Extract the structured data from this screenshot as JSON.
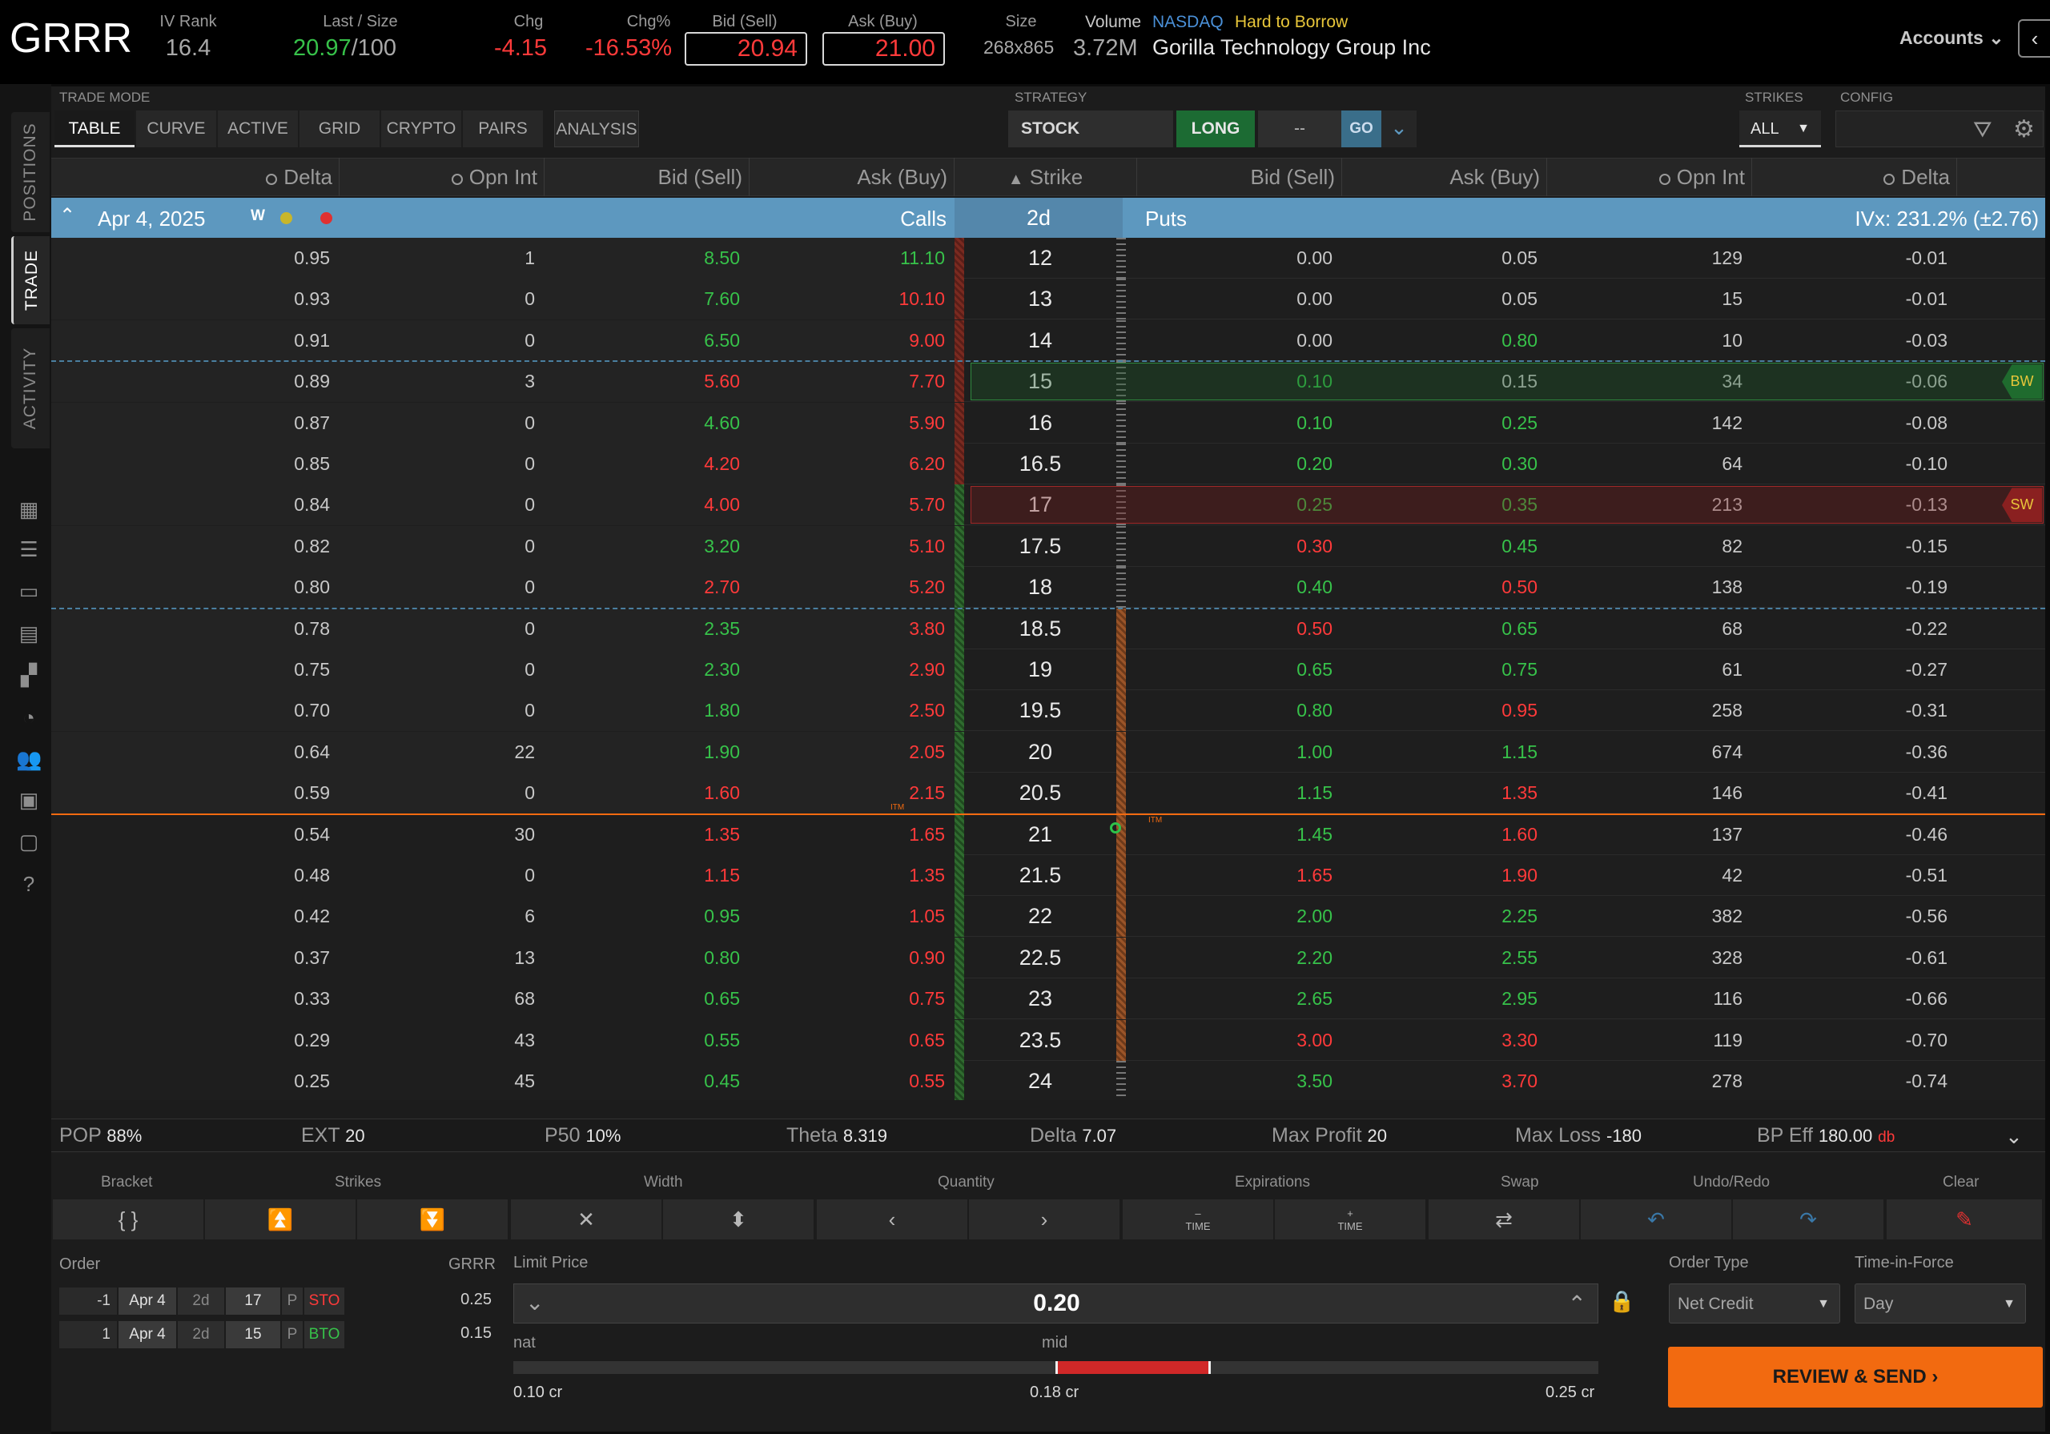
{
  "header": {
    "symbol": "GRRR",
    "iv_rank_label": "IV Rank",
    "iv_rank": "16.4",
    "last_size_label": "Last / Size",
    "last": "20.97",
    "size": "/100",
    "chg_label": "Chg",
    "chg": "-4.15",
    "chgpct_label": "Chg%",
    "chgpct": "-16.53%",
    "bid_label": "Bid (Sell)",
    "bid": "20.94",
    "ask_label": "Ask (Buy)",
    "ask": "21.00",
    "size2_label": "Size",
    "size2": "268x865",
    "volume_label": "Volume",
    "volume": "3.72M",
    "exchange": "NASDAQ",
    "htb": "Hard to Borrow",
    "company": "Gorilla Technology Group Inc",
    "accounts": "Accounts"
  },
  "rail": {
    "positions": "POSITIONS",
    "trade": "TRADE",
    "activity": "ACTIVITY"
  },
  "toolbar": {
    "trade_mode_label": "TRADE MODE",
    "modes": [
      "TABLE",
      "CURVE",
      "ACTIVE",
      "GRID",
      "CRYPTO",
      "PAIRS",
      "ANALYSIS"
    ],
    "strategy_label": "STRATEGY",
    "strategy": "STOCK",
    "direction": "LONG",
    "dash": "--",
    "go": "GO",
    "strikes_label": "STRIKES",
    "strikes": "ALL",
    "config_label": "CONFIG"
  },
  "columns": {
    "delta": "Delta",
    "opnint": "Opn Int",
    "bid": "Bid (Sell)",
    "ask": "Ask (Buy)",
    "strike": "Strike"
  },
  "expiry": {
    "date": "Apr 4, 2025",
    "w": "W",
    "calls": "Calls",
    "dte": "2d",
    "puts": "Puts",
    "ivx": "IVx: 231.2% (±2.76)"
  },
  "rows": [
    {
      "cd": "0.95",
      "co": "1",
      "cb": "8.50",
      "ca": "11.10",
      "k": "12",
      "pb": "0.00",
      "pa": "0.05",
      "po": "129",
      "pd": "-0.01",
      "cbc": "g",
      "cac": "g",
      "pbc": "w",
      "pac": "w"
    },
    {
      "cd": "0.93",
      "co": "0",
      "cb": "7.60",
      "ca": "10.10",
      "k": "13",
      "pb": "0.00",
      "pa": "0.05",
      "po": "15",
      "pd": "-0.01",
      "cbc": "g",
      "cac": "r",
      "pbc": "w",
      "pac": "w"
    },
    {
      "cd": "0.91",
      "co": "0",
      "cb": "6.50",
      "ca": "9.00",
      "k": "14",
      "pb": "0.00",
      "pa": "0.80",
      "po": "10",
      "pd": "-0.03",
      "cbc": "g",
      "cac": "r",
      "pbc": "w",
      "pac": "g"
    },
    {
      "cd": "0.89",
      "co": "3",
      "cb": "5.60",
      "ca": "7.70",
      "k": "15",
      "pb": "0.10",
      "pa": "0.15",
      "po": "34",
      "pd": "-0.06",
      "cbc": "r",
      "cac": "r",
      "pbc": "g",
      "pac": "w",
      "tag": "BW"
    },
    {
      "cd": "0.87",
      "co": "0",
      "cb": "4.60",
      "ca": "5.90",
      "k": "16",
      "pb": "0.10",
      "pa": "0.25",
      "po": "142",
      "pd": "-0.08",
      "cbc": "g",
      "cac": "r",
      "pbc": "g",
      "pac": "g"
    },
    {
      "cd": "0.85",
      "co": "0",
      "cb": "4.20",
      "ca": "6.20",
      "k": "16.5",
      "pb": "0.20",
      "pa": "0.30",
      "po": "64",
      "pd": "-0.10",
      "cbc": "r",
      "cac": "r",
      "pbc": "g",
      "pac": "g"
    },
    {
      "cd": "0.84",
      "co": "0",
      "cb": "4.00",
      "ca": "5.70",
      "k": "17",
      "pb": "0.25",
      "pa": "0.35",
      "po": "213",
      "pd": "-0.13",
      "cbc": "r",
      "cac": "r",
      "pbc": "g",
      "pac": "g",
      "tag": "SW"
    },
    {
      "cd": "0.82",
      "co": "0",
      "cb": "3.20",
      "ca": "5.10",
      "k": "17.5",
      "pb": "0.30",
      "pa": "0.45",
      "po": "82",
      "pd": "-0.15",
      "cbc": "g",
      "cac": "r",
      "pbc": "r",
      "pac": "g"
    },
    {
      "cd": "0.80",
      "co": "0",
      "cb": "2.70",
      "ca": "5.20",
      "k": "18",
      "pb": "0.40",
      "pa": "0.50",
      "po": "138",
      "pd": "-0.19",
      "cbc": "r",
      "cac": "r",
      "pbc": "g",
      "pac": "r"
    },
    {
      "cd": "0.78",
      "co": "0",
      "cb": "2.35",
      "ca": "3.80",
      "k": "18.5",
      "pb": "0.50",
      "pa": "0.65",
      "po": "68",
      "pd": "-0.22",
      "cbc": "g",
      "cac": "r",
      "pbc": "r",
      "pac": "g"
    },
    {
      "cd": "0.75",
      "co": "0",
      "cb": "2.30",
      "ca": "2.90",
      "k": "19",
      "pb": "0.65",
      "pa": "0.75",
      "po": "61",
      "pd": "-0.27",
      "cbc": "g",
      "cac": "r",
      "pbc": "g",
      "pac": "g"
    },
    {
      "cd": "0.70",
      "co": "0",
      "cb": "1.80",
      "ca": "2.50",
      "k": "19.5",
      "pb": "0.80",
      "pa": "0.95",
      "po": "258",
      "pd": "-0.31",
      "cbc": "g",
      "cac": "r",
      "pbc": "g",
      "pac": "r"
    },
    {
      "cd": "0.64",
      "co": "22",
      "cb": "1.90",
      "ca": "2.05",
      "k": "20",
      "pb": "1.00",
      "pa": "1.15",
      "po": "674",
      "pd": "-0.36",
      "cbc": "g",
      "cac": "r",
      "pbc": "g",
      "pac": "g"
    },
    {
      "cd": "0.59",
      "co": "0",
      "cb": "1.60",
      "ca": "2.15",
      "k": "20.5",
      "pb": "1.15",
      "pa": "1.35",
      "po": "146",
      "pd": "-0.41",
      "cbc": "r",
      "cac": "r",
      "pbc": "g",
      "pac": "r"
    },
    {
      "cd": "0.54",
      "co": "30",
      "cb": "1.35",
      "ca": "1.65",
      "k": "21",
      "pb": "1.45",
      "pa": "1.60",
      "po": "137",
      "pd": "-0.46",
      "cbc": "r",
      "cac": "r",
      "pbc": "g",
      "pac": "r"
    },
    {
      "cd": "0.48",
      "co": "0",
      "cb": "1.15",
      "ca": "1.35",
      "k": "21.5",
      "pb": "1.65",
      "pa": "1.90",
      "po": "42",
      "pd": "-0.51",
      "cbc": "r",
      "cac": "r",
      "pbc": "r",
      "pac": "r"
    },
    {
      "cd": "0.42",
      "co": "6",
      "cb": "0.95",
      "ca": "1.05",
      "k": "22",
      "pb": "2.00",
      "pa": "2.25",
      "po": "382",
      "pd": "-0.56",
      "cbc": "g",
      "cac": "r",
      "pbc": "g",
      "pac": "g"
    },
    {
      "cd": "0.37",
      "co": "13",
      "cb": "0.80",
      "ca": "0.90",
      "k": "22.5",
      "pb": "2.20",
      "pa": "2.55",
      "po": "328",
      "pd": "-0.61",
      "cbc": "g",
      "cac": "r",
      "pbc": "g",
      "pac": "g"
    },
    {
      "cd": "0.33",
      "co": "68",
      "cb": "0.65",
      "ca": "0.75",
      "k": "23",
      "pb": "2.65",
      "pa": "2.95",
      "po": "116",
      "pd": "-0.66",
      "cbc": "g",
      "cac": "r",
      "pbc": "g",
      "pac": "g"
    },
    {
      "cd": "0.29",
      "co": "43",
      "cb": "0.55",
      "ca": "0.65",
      "k": "23.5",
      "pb": "3.00",
      "pa": "3.30",
      "po": "119",
      "pd": "-0.70",
      "cbc": "g",
      "cac": "r",
      "pbc": "r",
      "pac": "r"
    },
    {
      "cd": "0.25",
      "co": "45",
      "cb": "0.45",
      "ca": "0.55",
      "k": "24",
      "pb": "3.50",
      "pa": "3.70",
      "po": "278",
      "pd": "-0.74",
      "cbc": "g",
      "cac": "r",
      "pbc": "g",
      "pac": "r"
    }
  ],
  "itm": "ITM",
  "stats": {
    "pop_l": "POP",
    "pop": "88%",
    "ext_l": "EXT",
    "ext": "20",
    "p50_l": "P50",
    "p50": "10%",
    "theta_l": "Theta",
    "theta": "8.319",
    "delta_l": "Delta",
    "delta": "7.07",
    "maxp_l": "Max Profit",
    "maxp": "20",
    "maxl_l": "Max Loss",
    "maxl": "-180",
    "bp_l": "BP Eff",
    "bp": "180.00",
    "bp_db": "db"
  },
  "tools": {
    "bracket": "Bracket",
    "strikes": "Strikes",
    "width": "Width",
    "quantity": "Quantity",
    "expirations": "Expirations",
    "swap": "Swap",
    "undo": "Undo/Redo",
    "clear": "Clear",
    "bracket_btn": "{ }",
    "time": "TIME"
  },
  "order": {
    "label": "Order",
    "sym": "GRRR",
    "legs": [
      {
        "qty": "-1",
        "exp": "Apr 4",
        "dte": "2d",
        "strike": "17",
        "type": "P",
        "act": "STO",
        "price": "0.25"
      },
      {
        "qty": "1",
        "exp": "Apr 4",
        "dte": "2d",
        "strike": "15",
        "type": "P",
        "act": "BTO",
        "price": "0.15"
      }
    ],
    "limit_label": "Limit Price",
    "limit": "0.20",
    "nat": "nat",
    "mid": "mid",
    "nat_val": "0.10 cr",
    "mid_val": "0.18 cr",
    "far_val": "0.25 cr",
    "order_type_label": "Order Type",
    "order_type": "Net Credit",
    "tif_label": "Time-in-Force",
    "tif": "Day",
    "review": "REVIEW & SEND"
  },
  "colors": {
    "green": "#37c24a",
    "red": "#ff3a3a",
    "orange": "#f26a10",
    "blue": "#5d98bf",
    "accent_go": "#3a6e8a"
  }
}
